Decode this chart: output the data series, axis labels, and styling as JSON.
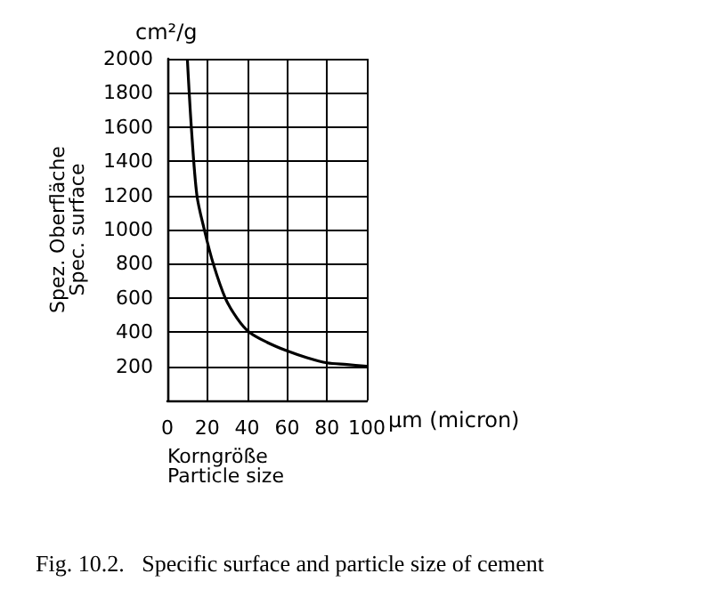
{
  "chart_data": {
    "type": "line",
    "title": "Fig. 10.2.   Specific surface and particle size of cement",
    "xlabel": "Korngröße\nParticle size",
    "ylabel": "Spez. Oberfläche\nSpec. surface",
    "annotations": [
      "cm²/g",
      "µm (micron)"
    ],
    "x": [
      10,
      12,
      14.8,
      18.5,
      23,
      29,
      35,
      41,
      50,
      60,
      70,
      80,
      90,
      100
    ],
    "series": [
      {
        "color": "#000000",
        "values": [
          2000,
          1600,
          1200,
          1000,
          800,
          600,
          480,
          400,
          340,
          290,
          250,
          220,
          210,
          200
        ]
      }
    ],
    "xlim": [
      0,
      100
    ],
    "xticks": [
      {
        "value": 0,
        "label": "0"
      },
      20,
      40,
      60,
      80,
      100
    ],
    "ylim": [
      0,
      2000
    ],
    "yticks": [
      {
        "value": 0,
        "label": null
      },
      200,
      400,
      600,
      800,
      1000,
      1200,
      1400,
      1600,
      1800,
      2000
    ],
    "grid": true,
    "marker": "none",
    "line_style": "solid"
  }
}
